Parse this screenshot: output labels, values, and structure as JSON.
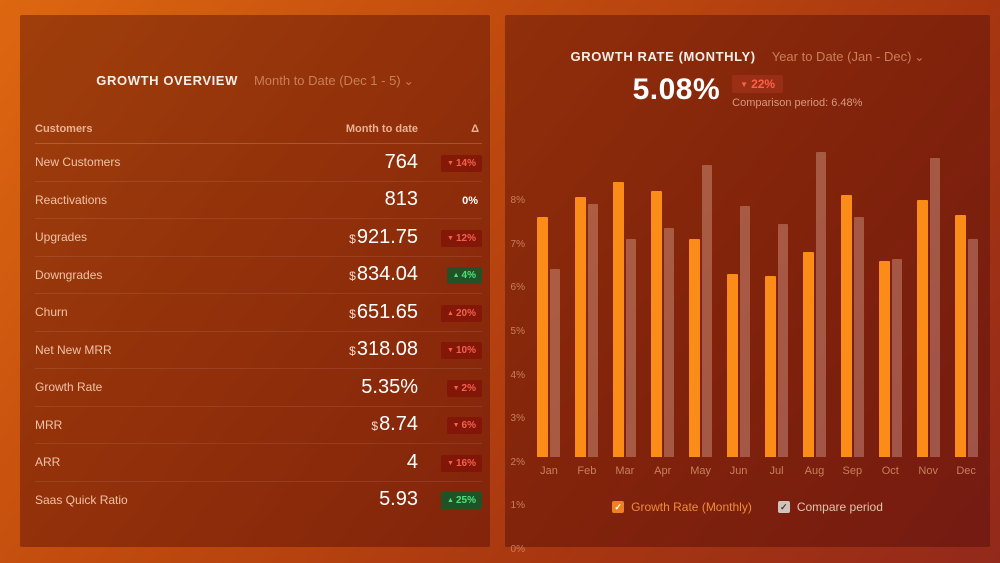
{
  "left_panel": {
    "title": "GROWTH OVERVIEW",
    "period_selector": "Month to Date (Dec 1 - 5)",
    "caret": "⌄",
    "table": {
      "columns": [
        "Customers",
        "Month to date",
        "Δ"
      ],
      "rows": [
        {
          "label": "New Customers",
          "prefix": "",
          "value": "764",
          "delta": "14%",
          "direction": "down",
          "tone": "negative"
        },
        {
          "label": "Reactivations",
          "prefix": "",
          "value": "813",
          "delta": "0%",
          "direction": "flat",
          "tone": "neutral"
        },
        {
          "label": "Upgrades",
          "prefix": "$",
          "value": "921.75",
          "delta": "12%",
          "direction": "down",
          "tone": "negative"
        },
        {
          "label": "Downgrades",
          "prefix": "$",
          "value": "834.04",
          "delta": "4%",
          "direction": "up",
          "tone": "positive"
        },
        {
          "label": "Churn",
          "prefix": "$",
          "value": "651.65",
          "delta": "20%",
          "direction": "up",
          "tone": "negative"
        },
        {
          "label": "Net New MRR",
          "prefix": "$",
          "value": "318.08",
          "delta": "10%",
          "direction": "down",
          "tone": "negative"
        },
        {
          "label": "Growth Rate",
          "prefix": "",
          "value": "5.35%",
          "delta": "2%",
          "direction": "down",
          "tone": "negative"
        },
        {
          "label": "MRR",
          "prefix": "$",
          "value": "8.74",
          "delta": "6%",
          "direction": "down",
          "tone": "negative"
        },
        {
          "label": "ARR",
          "prefix": "",
          "value": "4",
          "delta": "16%",
          "direction": "down",
          "tone": "negative"
        },
        {
          "label": "Saas Quick Ratio",
          "prefix": "",
          "value": "5.93",
          "delta": "25%",
          "direction": "up",
          "tone": "positive"
        }
      ]
    }
  },
  "right_panel": {
    "title": "GROWTH RATE (MONTHLY)",
    "period_selector": "Year to Date (Jan - Dec)",
    "caret": "⌄",
    "big_value": "5.08%",
    "delta_badge": "22%",
    "delta_direction": "down",
    "comparison_text": "Comparison period: 6.48%",
    "legend": [
      {
        "label": "Growth Rate (Monthly)",
        "color": "#fb8c17"
      },
      {
        "label": "Compare period",
        "color": "#cfc4bd"
      }
    ]
  },
  "chart_data": [
    {
      "type": "table",
      "title": "GROWTH OVERVIEW",
      "columns": [
        "Customers",
        "Month to date",
        "Δ"
      ],
      "rows": [
        [
          "New Customers",
          "764",
          "-14%"
        ],
        [
          "Reactivations",
          "813",
          "0%"
        ],
        [
          "Upgrades",
          "$921.75",
          "-12%"
        ],
        [
          "Downgrades",
          "$834.04",
          "+4%"
        ],
        [
          "Churn",
          "$651.65",
          "+20%"
        ],
        [
          "Net New MRR",
          "$318.08",
          "-10%"
        ],
        [
          "Growth Rate",
          "5.35%",
          "-2%"
        ],
        [
          "MRR",
          "$8.74",
          "-6%"
        ],
        [
          "ARR",
          "4",
          "-16%"
        ],
        [
          "Saas Quick Ratio",
          "5.93",
          "+25%"
        ]
      ]
    },
    {
      "type": "bar",
      "title": "GROWTH RATE (MONTHLY)",
      "categories": [
        "Jan",
        "Feb",
        "Mar",
        "Apr",
        "May",
        "Jun",
        "Jul",
        "Aug",
        "Sep",
        "Oct",
        "Nov",
        "Dec"
      ],
      "series": [
        {
          "name": "Growth Rate (Monthly)",
          "color": "#fb8c17",
          "values": [
            5.5,
            5.95,
            6.3,
            6.1,
            5.0,
            4.2,
            4.15,
            4.7,
            6.0,
            4.5,
            5.9,
            5.55
          ]
        },
        {
          "name": "Compare period",
          "color": "rgba(255,216,200,0.30)",
          "values": [
            4.3,
            5.8,
            5.0,
            5.25,
            6.7,
            5.75,
            5.35,
            7.0,
            5.5,
            4.55,
            6.85,
            5.0
          ]
        }
      ],
      "xlabel": "",
      "ylabel": "",
      "ylim": [
        0,
        8
      ],
      "y_ticks": [
        "0%",
        "1%",
        "2%",
        "3%",
        "4%",
        "5%",
        "6%",
        "7%",
        "8%"
      ],
      "grid": false,
      "legend_position": "bottom"
    }
  ],
  "colors": {
    "accent_orange": "#fb8c17",
    "compare_bar": "rgba(255,216,200,0.30)",
    "negative_text": "#f4604f",
    "positive_text": "#4ee37f",
    "muted_text": "#c97f5e",
    "background_top_left": "#dd6710",
    "background_bottom_right": "#93291b"
  },
  "glyphs": {
    "down_arrow": "▼",
    "up_arrow": "▲",
    "check": "✓"
  }
}
